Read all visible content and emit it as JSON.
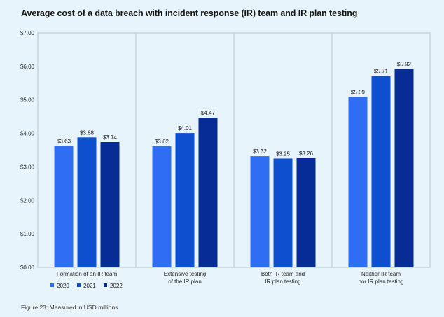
{
  "title": "Average cost of a data breach with incident response (IR) team and IR plan testing",
  "footnote": "Figure 23: Measured in USD millions",
  "colors": {
    "background": "#e8f4fb",
    "grid": "#b6c3cc",
    "series": [
      "#2f6ef2",
      "#0e4fd0",
      "#082c96"
    ]
  },
  "chart_data": {
    "type": "bar",
    "categories": [
      [
        "Formation of an IR team"
      ],
      [
        "Extensive testing",
        "of the IR plan"
      ],
      [
        "Both IR team and",
        "IR plan testing"
      ],
      [
        "Neither IR team",
        "nor IR plan testing"
      ]
    ],
    "series": [
      {
        "name": "2020",
        "values": [
          3.63,
          3.62,
          3.32,
          5.09
        ]
      },
      {
        "name": "2021",
        "values": [
          3.88,
          4.01,
          3.25,
          5.71
        ]
      },
      {
        "name": "2022",
        "values": [
          3.74,
          4.47,
          3.26,
          5.92
        ]
      }
    ],
    "value_labels": [
      [
        "$3.63",
        "$3.62",
        "$3.32",
        "$5.09"
      ],
      [
        "$3.88",
        "$4.01",
        "$3.25",
        "$5.71"
      ],
      [
        "$3.74",
        "$4.47",
        "$3.26",
        "$5.92"
      ]
    ],
    "yticks": [
      0,
      1,
      2,
      3,
      4,
      5,
      6,
      7
    ],
    "ytick_labels": [
      "$0.00",
      "$1.00",
      "$2.00",
      "$3.00",
      "$4.00",
      "$5.00",
      "$6.00",
      "$7.00"
    ],
    "ylim": [
      0,
      7
    ],
    "grid": "vertical separators between categories",
    "legend_position": "bottom-left"
  }
}
